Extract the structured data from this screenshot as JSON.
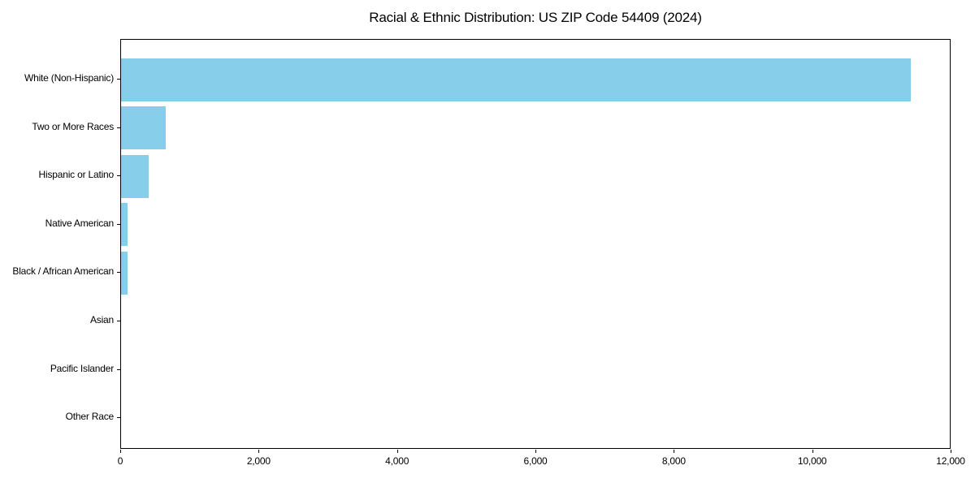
{
  "title": "Racial & Ethnic Distribution: US ZIP Code 54409 (2024)",
  "chart_data": {
    "type": "bar",
    "orientation": "horizontal",
    "title": "Racial & Ethnic Distribution: US ZIP Code 54409 (2024)",
    "categories": [
      "White (Non-Hispanic)",
      "Two or More Races",
      "Hispanic or Latino",
      "Native American",
      "Black / African American",
      "Asian",
      "Pacific Islander",
      "Other Race"
    ],
    "values": [
      11410,
      640,
      395,
      90,
      90,
      0,
      0,
      0
    ],
    "xlabel": "",
    "ylabel": "",
    "xlim": [
      0,
      12000
    ],
    "x_ticks": [
      0,
      2000,
      4000,
      6000,
      8000,
      10000,
      12000
    ],
    "x_tick_labels": [
      "0",
      "2,000",
      "4,000",
      "6,000",
      "8,000",
      "10,000",
      "12,000"
    ],
    "bar_color": "#87CEEB",
    "spine_color": "#000000",
    "background_color": "#ffffff",
    "grid": false,
    "legend": "none",
    "bars_sorted_descending_top_to_bottom": true
  }
}
